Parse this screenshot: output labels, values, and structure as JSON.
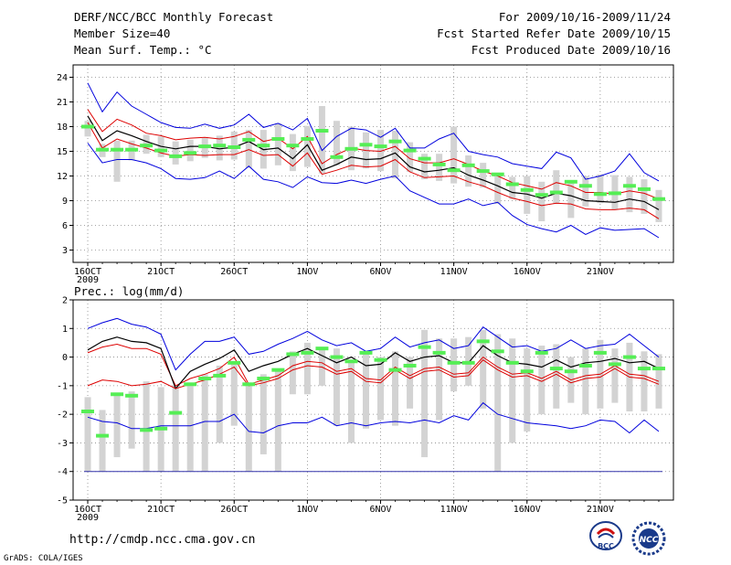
{
  "header": {
    "title": "DERF/NCC/BCC Monthly Forecast",
    "member_size": "Member Size=40",
    "variable_label": "Mean Surf. Temp.: °C",
    "forecast_period": "For 2009/10/16-2009/11/24",
    "start_date": "Fcst Started Refer Date 2009/10/15",
    "produced_date": "Fcst Produced Date 2009/10/16"
  },
  "footer": {
    "url": "http://cmdp.ncc.cma.gov.cn",
    "grads_credit": "GrADS: COLA/IGES",
    "logo_bcc": "BCC",
    "logo_ncc": "NCC"
  },
  "colors": {
    "max_line": "#0000dd",
    "min_line": "#0000dd",
    "upper_line": "#dd0000",
    "lower_line": "#dd0000",
    "mean_line": "#000000",
    "box": "#d3d3d3",
    "observed": "#55ee55",
    "grid": "#888888"
  },
  "chart_data": [
    {
      "type": "line",
      "title": "Mean Surf. Temp.: °C",
      "xlabel": "",
      "ylabel": "",
      "ylim": [
        1.5,
        25.5
      ],
      "yticks": [
        3,
        6,
        9,
        12,
        15,
        18,
        21,
        24
      ],
      "xtick_labels": [
        "16OCT\n2009",
        "21OCT",
        "26OCT",
        "1NOV",
        "6NOV",
        "11NOV",
        "16NOV",
        "21NOV"
      ],
      "xtick_days": [
        1,
        6,
        11,
        16,
        21,
        26,
        31,
        36
      ],
      "x_days": [
        1,
        2,
        3,
        4,
        5,
        6,
        7,
        8,
        9,
        10,
        11,
        12,
        13,
        14,
        15,
        16,
        17,
        18,
        19,
        20,
        21,
        22,
        23,
        24,
        25,
        26,
        27,
        28,
        29,
        30,
        31,
        32,
        33,
        34,
        35,
        36,
        37,
        38,
        39,
        40
      ],
      "series": [
        {
          "name": "max",
          "values": [
            23.3,
            19.8,
            22.2,
            20.5,
            19.5,
            18.5,
            17.9,
            17.8,
            18.3,
            17.8,
            18.2,
            19.5,
            17.9,
            18.4,
            17.6,
            19.0,
            15.1,
            16.8,
            17.8,
            17.6,
            16.7,
            17.8,
            15.4,
            15.4,
            16.5,
            17.2,
            15.0,
            14.6,
            14.3,
            13.5,
            13.2,
            12.9,
            14.9,
            14.2,
            11.6,
            12.0,
            12.6,
            14.7,
            12.4,
            11.4
          ]
        },
        {
          "name": "upper",
          "values": [
            20.1,
            17.4,
            18.9,
            18.2,
            17.2,
            16.9,
            16.4,
            16.6,
            16.7,
            16.5,
            16.8,
            17.4,
            16.2,
            16.6,
            15.3,
            16.8,
            13.5,
            14.6,
            15.4,
            15.1,
            15.0,
            15.6,
            14.1,
            13.6,
            13.6,
            14.1,
            13.4,
            12.6,
            12.0,
            11.2,
            10.8,
            10.4,
            11.2,
            10.8,
            10.0,
            10.0,
            9.8,
            10.2,
            9.9,
            9.2
          ]
        },
        {
          "name": "mean",
          "values": [
            19.3,
            16.3,
            17.5,
            16.9,
            16.2,
            15.6,
            15.3,
            15.6,
            15.6,
            15.3,
            15.5,
            16.2,
            15.2,
            15.4,
            14.1,
            15.8,
            12.7,
            13.4,
            14.3,
            14.0,
            14.1,
            14.8,
            13.1,
            12.5,
            12.7,
            13.0,
            12.1,
            11.5,
            10.8,
            10.0,
            9.8,
            9.3,
            9.9,
            9.6,
            9.0,
            8.9,
            8.8,
            9.2,
            8.9,
            7.9
          ]
        },
        {
          "name": "lower",
          "values": [
            18.5,
            15.4,
            16.5,
            15.9,
            15.4,
            14.8,
            14.4,
            14.6,
            14.5,
            14.6,
            14.6,
            15.2,
            14.5,
            14.6,
            13.2,
            14.8,
            12.2,
            12.7,
            13.3,
            13.1,
            13.2,
            14.0,
            12.5,
            11.8,
            11.9,
            12.0,
            11.3,
            10.8,
            10.0,
            9.3,
            8.9,
            8.4,
            8.7,
            8.6,
            8.0,
            7.9,
            7.9,
            8.1,
            7.9,
            6.8
          ]
        },
        {
          "name": "min",
          "values": [
            16.0,
            13.6,
            14.0,
            14.0,
            13.6,
            12.9,
            11.7,
            11.6,
            11.8,
            12.6,
            11.7,
            13.2,
            11.6,
            11.3,
            10.6,
            11.9,
            11.2,
            11.1,
            11.5,
            11.1,
            11.6,
            12.0,
            10.2,
            9.4,
            8.6,
            8.6,
            9.2,
            8.4,
            8.8,
            7.2,
            6.1,
            5.6,
            5.2,
            6.0,
            4.9,
            5.7,
            5.4,
            5.5,
            5.6,
            4.5
          ]
        },
        {
          "name": "observed",
          "values": [
            18.0,
            15.2,
            15.2,
            15.2,
            15.7,
            15.1,
            14.4,
            14.8,
            15.6,
            15.7,
            15.5,
            16.4,
            15.7,
            16.5,
            15.7,
            16.5,
            17.5,
            14.3,
            15.3,
            15.8,
            15.6,
            16.2,
            15.1,
            14.1,
            13.4,
            12.7,
            13.3,
            12.6,
            12.2,
            11.0,
            10.3,
            9.7,
            10.0,
            11.3,
            10.8,
            9.8,
            9.9,
            10.8,
            10.4,
            9.2
          ]
        }
      ],
      "boxes": [
        {
          "low": 16.8,
          "high": 18.7
        },
        {
          "low": 14.3,
          "high": 15.9
        },
        {
          "low": 11.3,
          "high": 16.3
        },
        {
          "low": 13.9,
          "high": 16.3
        },
        {
          "low": 14.7,
          "high": 17.0
        },
        {
          "low": 14.3,
          "high": 16.8
        },
        {
          "low": 13.4,
          "high": 16.2
        },
        {
          "low": 13.8,
          "high": 16.4
        },
        {
          "low": 14.2,
          "high": 16.6
        },
        {
          "low": 13.9,
          "high": 16.9
        },
        {
          "low": 14.0,
          "high": 17.4
        },
        {
          "low": 13.0,
          "high": 17.6
        },
        {
          "low": 12.9,
          "high": 17.6
        },
        {
          "low": 13.3,
          "high": 18.4
        },
        {
          "low": 12.6,
          "high": 17.1
        },
        {
          "low": 13.1,
          "high": 18.1
        },
        {
          "low": 12.3,
          "high": 20.5
        },
        {
          "low": 13.3,
          "high": 18.7
        },
        {
          "low": 12.7,
          "high": 18.0
        },
        {
          "low": 12.9,
          "high": 17.3
        },
        {
          "low": 12.6,
          "high": 17.6
        },
        {
          "low": 11.7,
          "high": 17.5
        },
        {
          "low": 12.5,
          "high": 16.1
        },
        {
          "low": 11.6,
          "high": 14.7
        },
        {
          "low": 11.4,
          "high": 14.7
        },
        {
          "low": 11.1,
          "high": 18.0
        },
        {
          "low": 10.7,
          "high": 14.5
        },
        {
          "low": 10.6,
          "high": 13.6
        },
        {
          "low": 8.6,
          "high": 12.1
        },
        {
          "low": 9.2,
          "high": 11.9
        },
        {
          "low": 7.4,
          "high": 12.0
        },
        {
          "low": 6.5,
          "high": 11.3
        },
        {
          "low": 8.6,
          "high": 12.7
        },
        {
          "low": 6.9,
          "high": 11.1
        },
        {
          "low": 8.3,
          "high": 12.0
        },
        {
          "low": 8.7,
          "high": 12.2
        },
        {
          "low": 7.9,
          "high": 12.1
        },
        {
          "low": 7.6,
          "high": 11.9
        },
        {
          "low": 7.4,
          "high": 11.6
        },
        {
          "low": 6.4,
          "high": 10.3
        }
      ]
    },
    {
      "type": "line",
      "title": "Prec.: log(mm/d)",
      "xlabel": "",
      "ylabel": "",
      "ylim": [
        -5,
        2
      ],
      "yticks": [
        -5,
        -4,
        -3,
        -2,
        -1,
        0,
        1,
        2
      ],
      "xtick_labels": [
        "16OCT\n2009",
        "21OCT",
        "26OCT",
        "1NOV",
        "6NOV",
        "11NOV",
        "16NOV",
        "21NOV"
      ],
      "xtick_days": [
        1,
        6,
        11,
        16,
        21,
        26,
        31,
        36
      ],
      "x_days": [
        1,
        2,
        3,
        4,
        5,
        6,
        7,
        8,
        9,
        10,
        11,
        12,
        13,
        14,
        15,
        16,
        17,
        18,
        19,
        20,
        21,
        22,
        23,
        24,
        25,
        26,
        27,
        28,
        29,
        30,
        31,
        32,
        33,
        34,
        35,
        36,
        37,
        38,
        39,
        40
      ],
      "series": [
        {
          "name": "max",
          "values": [
            1.0,
            1.2,
            1.35,
            1.15,
            1.05,
            0.8,
            -0.45,
            0.1,
            0.55,
            0.55,
            0.7,
            0.1,
            0.2,
            0.45,
            0.65,
            0.9,
            0.6,
            0.4,
            0.5,
            0.2,
            0.3,
            0.7,
            0.35,
            0.5,
            0.6,
            0.3,
            0.4,
            1.05,
            0.7,
            0.35,
            0.4,
            0.2,
            0.3,
            0.6,
            0.3,
            0.4,
            0.45,
            0.8,
            0.4,
            0.0
          ]
        },
        {
          "name": "upper",
          "values": [
            0.15,
            0.35,
            0.45,
            0.3,
            0.3,
            0.1,
            -1.0,
            -0.75,
            -0.6,
            -0.4,
            0.0,
            -0.95,
            -0.8,
            -0.65,
            -0.3,
            -0.15,
            -0.2,
            -0.5,
            -0.4,
            -0.75,
            -0.8,
            -0.35,
            -0.65,
            -0.4,
            -0.35,
            -0.6,
            -0.55,
            0.0,
            -0.35,
            -0.6,
            -0.55,
            -0.75,
            -0.5,
            -0.8,
            -0.65,
            -0.6,
            -0.3,
            -0.6,
            -0.65,
            -0.85
          ]
        },
        {
          "name": "mean",
          "values": [
            0.25,
            0.55,
            0.7,
            0.55,
            0.5,
            0.3,
            -1.1,
            -0.5,
            -0.25,
            -0.05,
            0.25,
            -0.5,
            -0.3,
            -0.15,
            0.1,
            0.3,
            0.05,
            -0.2,
            0.0,
            -0.3,
            -0.25,
            0.15,
            -0.15,
            0.0,
            0.05,
            -0.2,
            -0.2,
            0.4,
            0.05,
            -0.2,
            -0.25,
            -0.35,
            -0.1,
            -0.35,
            -0.2,
            -0.15,
            -0.05,
            -0.2,
            -0.15,
            -0.4
          ]
        },
        {
          "name": "lower",
          "values": [
            -1.0,
            -0.8,
            -0.85,
            -1.0,
            -0.95,
            -0.85,
            -1.1,
            -0.95,
            -0.8,
            -0.6,
            -0.35,
            -1.0,
            -0.9,
            -0.75,
            -0.45,
            -0.3,
            -0.35,
            -0.6,
            -0.5,
            -0.85,
            -0.9,
            -0.45,
            -0.75,
            -0.5,
            -0.45,
            -0.7,
            -0.65,
            -0.1,
            -0.45,
            -0.7,
            -0.65,
            -0.85,
            -0.6,
            -0.9,
            -0.75,
            -0.7,
            -0.4,
            -0.7,
            -0.75,
            -0.95
          ]
        },
        {
          "name": "min",
          "values": [
            -2.1,
            -2.25,
            -2.3,
            -2.5,
            -2.5,
            -2.4,
            -2.4,
            -2.4,
            -2.25,
            -2.25,
            -2.0,
            -2.6,
            -2.65,
            -2.4,
            -2.3,
            -2.3,
            -2.1,
            -2.4,
            -2.3,
            -2.4,
            -2.3,
            -2.25,
            -2.3,
            -2.2,
            -2.3,
            -2.05,
            -2.2,
            -1.6,
            -2.0,
            -2.15,
            -2.3,
            -2.35,
            -2.4,
            -2.5,
            -2.4,
            -2.2,
            -2.25,
            -2.65,
            -2.2,
            -2.6
          ]
        },
        {
          "name": "observed",
          "values": [
            -1.9,
            -2.75,
            -1.3,
            -1.35,
            -2.55,
            -2.5,
            -1.95,
            -0.95,
            -0.75,
            -0.65,
            -0.2,
            -0.95,
            -0.75,
            -0.45,
            0.1,
            0.15,
            0.3,
            0.0,
            -0.15,
            0.15,
            -0.1,
            -0.45,
            -0.3,
            0.35,
            0.15,
            -0.2,
            -0.2,
            0.55,
            0.2,
            -0.2,
            -0.5,
            0.15,
            -0.4,
            -0.5,
            -0.3,
            0.15,
            -0.25,
            0.0,
            -0.4,
            -0.4
          ]
        }
      ],
      "boxes": [
        {
          "low": -4.0,
          "high": -1.4
        },
        {
          "low": -4.0,
          "high": -1.85
        },
        {
          "low": -3.5,
          "high": -1.35
        },
        {
          "low": -3.2,
          "high": -1.2
        },
        {
          "low": -4.0,
          "high": -0.85
        },
        {
          "low": -4.0,
          "high": -1.05
        },
        {
          "low": -4.0,
          "high": -1.0
        },
        {
          "low": -4.0,
          "high": -0.95
        },
        {
          "low": -4.0,
          "high": -0.6
        },
        {
          "low": -3.0,
          "high": -0.3
        },
        {
          "low": -2.4,
          "high": -0.2
        },
        {
          "low": -4.0,
          "high": -0.95
        },
        {
          "low": -3.4,
          "high": -0.6
        },
        {
          "low": -4.0,
          "high": -0.45
        },
        {
          "low": -1.3,
          "high": 0.2
        },
        {
          "low": -1.3,
          "high": 0.5
        },
        {
          "low": -1.0,
          "high": 0.3
        },
        {
          "low": -2.4,
          "high": 0.3
        },
        {
          "low": -3.0,
          "high": -0.1
        },
        {
          "low": -2.5,
          "high": 0.2
        },
        {
          "low": -2.2,
          "high": 0.0
        },
        {
          "low": -2.4,
          "high": 0.2
        },
        {
          "low": -1.8,
          "high": 0.0
        },
        {
          "low": -3.5,
          "high": 0.95
        },
        {
          "low": -2.2,
          "high": 0.65
        },
        {
          "low": -1.2,
          "high": 0.65
        },
        {
          "low": -1.0,
          "high": 0.7
        },
        {
          "low": -1.8,
          "high": 0.95
        },
        {
          "low": -4.0,
          "high": 0.8
        },
        {
          "low": -3.0,
          "high": 0.65
        },
        {
          "low": -2.6,
          "high": 0.3
        },
        {
          "low": -2.0,
          "high": 0.4
        },
        {
          "low": -1.8,
          "high": 0.45
        },
        {
          "low": -1.6,
          "high": 0.0
        },
        {
          "low": -2.0,
          "high": 0.3
        },
        {
          "low": -1.8,
          "high": 0.6
        },
        {
          "low": -1.6,
          "high": 0.3
        },
        {
          "low": -1.9,
          "high": 0.5
        },
        {
          "low": -1.9,
          "high": 0.2
        },
        {
          "low": -1.8,
          "high": 0.1
        }
      ],
      "floor_line": -4.0
    }
  ]
}
